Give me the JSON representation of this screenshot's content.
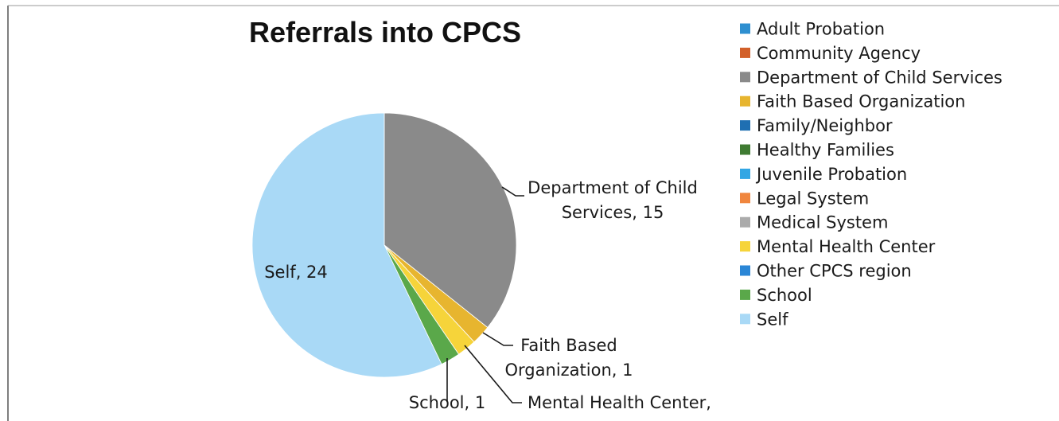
{
  "chart_data": {
    "type": "pie",
    "title": "Referrals into CPCS",
    "legend_position": "right",
    "slices": [
      {
        "name": "Adult Probation",
        "value": 0,
        "color": "#2e8fd0"
      },
      {
        "name": "Community Agency",
        "value": 0,
        "color": "#d2602a"
      },
      {
        "name": "Department of Child Services",
        "value": 15,
        "color": "#8a8a8a"
      },
      {
        "name": "Faith Based Organization",
        "value": 1,
        "color": "#e7b52f"
      },
      {
        "name": "Family/Neighbor",
        "value": 0,
        "color": "#1f6fb2"
      },
      {
        "name": "Healthy Families",
        "value": 0,
        "color": "#3f7b32"
      },
      {
        "name": "Juvenile Probation",
        "value": 0,
        "color": "#32a6e4"
      },
      {
        "name": "Legal System",
        "value": 0,
        "color": "#f0863e"
      },
      {
        "name": "Medical System",
        "value": 0,
        "color": "#ababab"
      },
      {
        "name": "Mental Health Center",
        "value": 1,
        "color": "#f6d43a"
      },
      {
        "name": "Other CPCS region",
        "value": 0,
        "color": "#2a86d6"
      },
      {
        "name": "School",
        "value": 1,
        "color": "#5aa84a"
      },
      {
        "name": "Self",
        "value": 24,
        "color": "#a9d9f6"
      }
    ],
    "data_labels": [
      {
        "slice": "Department of Child Services",
        "lines": [
          "Department of Child",
          "Services, 15"
        ]
      },
      {
        "slice": "Faith Based Organization",
        "lines": [
          "Faith Based",
          "Organization, 1"
        ]
      },
      {
        "slice": "Mental Health Center",
        "lines": [
          "Mental Health Center,"
        ]
      },
      {
        "slice": "School",
        "lines": [
          "School, 1"
        ]
      },
      {
        "slice": "Self",
        "lines": [
          "Self, 24"
        ]
      }
    ]
  }
}
